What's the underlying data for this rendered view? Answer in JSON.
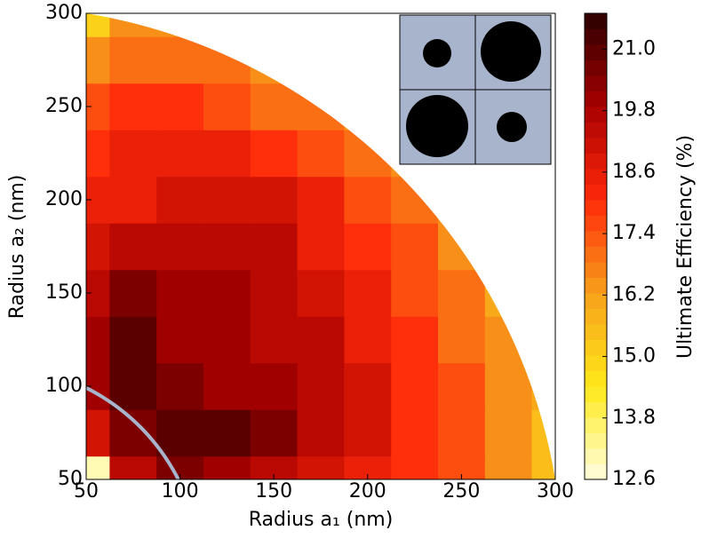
{
  "chart_data": {
    "type": "contour",
    "xlabel": "Radius a₁ (nm)",
    "ylabel": "Radius a₂ (nm)",
    "colorbar_label": "Ultimate Efficiency (%)",
    "x": [
      50,
      75,
      100,
      125,
      150,
      175,
      200,
      225,
      250,
      275,
      300
    ],
    "y": [
      50,
      75,
      100,
      125,
      150,
      175,
      200,
      225,
      250,
      275,
      300
    ],
    "z": [
      [
        13,
        19.5,
        20.5,
        20,
        19.5,
        19,
        18.5,
        18,
        17.5,
        16.5,
        15.5
      ],
      [
        19,
        20.5,
        21,
        21,
        20.5,
        19.5,
        19,
        18,
        17.5,
        16.5,
        15.5
      ],
      [
        20,
        21,
        20.5,
        20,
        20,
        19.5,
        19,
        18,
        17.5,
        16.5,
        16
      ],
      [
        20,
        21,
        20,
        20,
        19.5,
        19.5,
        18.5,
        18,
        17,
        16.5,
        null
      ],
      [
        19.5,
        20.5,
        20,
        20,
        19.5,
        19,
        18.5,
        17.5,
        17,
        16,
        null
      ],
      [
        19,
        19.5,
        19.5,
        19.5,
        19.5,
        18.5,
        18,
        17.5,
        16.5,
        null,
        null
      ],
      [
        18.5,
        18.5,
        19,
        19,
        19,
        18.5,
        17.5,
        17,
        16.5,
        null,
        null
      ],
      [
        18,
        18.5,
        18.5,
        18.5,
        18,
        17.5,
        17,
        16.5,
        null,
        null,
        null
      ],
      [
        17.5,
        18,
        18,
        17.5,
        17,
        17,
        16.5,
        null,
        null,
        null,
        null
      ],
      [
        16.5,
        17,
        17,
        17,
        16.5,
        16,
        null,
        null,
        null,
        null,
        null
      ],
      [
        15,
        16.5,
        16.5,
        16,
        null,
        null,
        null,
        null,
        null,
        null,
        null
      ]
    ],
    "xlim": [
      50,
      300
    ],
    "ylim": [
      50,
      300
    ],
    "xticks": [
      50,
      100,
      150,
      200,
      250,
      300
    ],
    "yticks": [
      50,
      100,
      150,
      200,
      250,
      300
    ],
    "clim": [
      12.6,
      21.7
    ],
    "cticks": [
      12.6,
      13.8,
      {
        "value": 15,
        "label": "15.0"
      },
      16.2,
      17.4,
      18.6,
      19.8,
      {
        "value": 21,
        "label": "21.0"
      }
    ],
    "colormap": [
      "#ffffe0",
      "#ffe81a",
      "#f7a01a",
      "#ff2a0a",
      "#a80000",
      "#2a0000"
    ]
  }
}
